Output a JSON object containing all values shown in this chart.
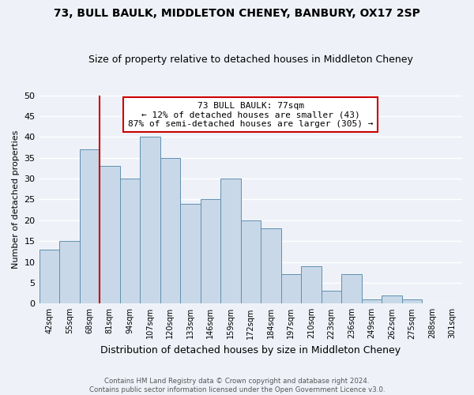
{
  "title": "73, BULL BAULK, MIDDLETON CHENEY, BANBURY, OX17 2SP",
  "subtitle": "Size of property relative to detached houses in Middleton Cheney",
  "xlabel": "Distribution of detached houses by size in Middleton Cheney",
  "ylabel": "Number of detached properties",
  "bin_labels": [
    "42sqm",
    "55sqm",
    "68sqm",
    "81sqm",
    "94sqm",
    "107sqm",
    "120sqm",
    "133sqm",
    "146sqm",
    "159sqm",
    "172sqm",
    "184sqm",
    "197sqm",
    "210sqm",
    "223sqm",
    "236sqm",
    "249sqm",
    "262sqm",
    "275sqm",
    "288sqm",
    "301sqm"
  ],
  "bar_heights": [
    13,
    15,
    37,
    33,
    30,
    40,
    35,
    24,
    25,
    30,
    20,
    18,
    7,
    9,
    3,
    7,
    1,
    2,
    1,
    0,
    0
  ],
  "bar_color": "#c8d8e8",
  "bar_edge_color": "#6090b0",
  "vline_x_index": 3,
  "vline_color": "#cc0000",
  "ylim": [
    0,
    50
  ],
  "yticks": [
    0,
    5,
    10,
    15,
    20,
    25,
    30,
    35,
    40,
    45,
    50
  ],
  "annotation_title": "73 BULL BAULK: 77sqm",
  "annotation_line1": "← 12% of detached houses are smaller (43)",
  "annotation_line2": "87% of semi-detached houses are larger (305) →",
  "annotation_box_color": "#ffffff",
  "annotation_box_edge": "#cc0000",
  "footer1": "Contains HM Land Registry data © Crown copyright and database right 2024.",
  "footer2": "Contains public sector information licensed under the Open Government Licence v3.0.",
  "background_color": "#eef2f8",
  "grid_color": "#ffffff"
}
